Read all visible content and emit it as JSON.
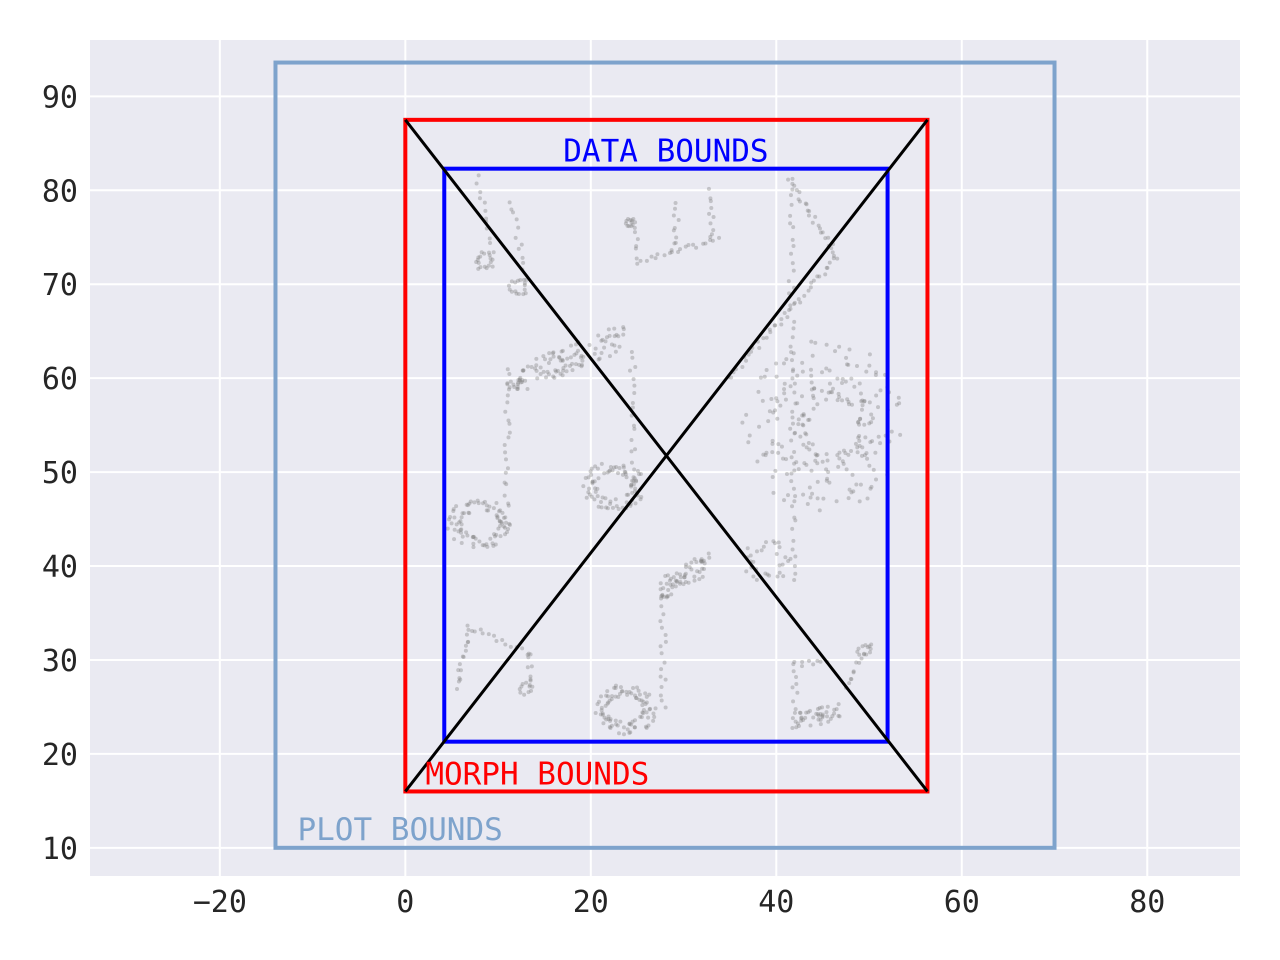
{
  "chart_data": {
    "type": "scatter",
    "xlim": [
      -34,
      90
    ],
    "ylim": [
      7,
      96
    ],
    "xticks": [
      -20,
      0,
      20,
      40,
      60,
      80
    ],
    "yticks": [
      10,
      20,
      30,
      40,
      50,
      60,
      70,
      80,
      90
    ],
    "x_tick_labels": [
      "−20",
      "0",
      "20",
      "40",
      "60",
      "80"
    ],
    "y_tick_labels": [
      "10",
      "20",
      "30",
      "40",
      "50",
      "60",
      "70",
      "80",
      "90"
    ],
    "grid": true,
    "style": "seaborn-darkgrid",
    "colors": {
      "background": "#eaeaf2",
      "grid": "#ffffff",
      "plot_bounds": "#7ea3cc",
      "morph_bounds": "#ff0000",
      "data_bounds": "#0000ff",
      "diagonals": "#000000",
      "points": "#808080"
    },
    "boxes": [
      {
        "label": "PLOT BOUNDS",
        "xmin": -14.0,
        "xmax": 70.0,
        "ymin": 10.0,
        "ymax": 93.6
      },
      {
        "label": "MORPH BOUNDS",
        "xmin": 0.0,
        "xmax": 56.3,
        "ymin": 16.0,
        "ymax": 87.5
      },
      {
        "label": "DATA BOUNDS",
        "xmin": 4.2,
        "xmax": 52.0,
        "ymin": 21.3,
        "ymax": 82.3
      }
    ],
    "diagonals": [
      {
        "from": [
          0.0,
          87.5
        ],
        "to": [
          56.3,
          16.0
        ]
      },
      {
        "from": [
          0.0,
          16.0
        ],
        "to": [
          56.3,
          87.5
        ]
      }
    ],
    "point_groups": [
      {
        "name": "note-head-small",
        "shape": "ellipse",
        "cx": 8.5,
        "cy": 72.5,
        "rx": 1.1,
        "ry": 1.0,
        "n": 18
      },
      {
        "name": "note-stem-small",
        "shape": "line",
        "from": [
          9.5,
          73.5
        ],
        "to": [
          7.8,
          81.5
        ],
        "n": 12
      },
      {
        "name": "note-head-small-2",
        "shape": "ellipse",
        "cx": 12.2,
        "cy": 69.7,
        "rx": 1.0,
        "ry": 1.0,
        "n": 16
      },
      {
        "name": "note-stem-small-2",
        "shape": "line",
        "from": [
          13.0,
          70.5
        ],
        "to": [
          11.5,
          79.0
        ],
        "n": 12
      },
      {
        "name": "triplet-head",
        "shape": "ellipse",
        "cx": 24.2,
        "cy": 76.5,
        "rx": 0.6,
        "ry": 0.6,
        "n": 10
      },
      {
        "name": "triplet-stem-1",
        "shape": "line",
        "from": [
          24.6,
          77.0
        ],
        "to": [
          25.2,
          73.0
        ],
        "n": 8
      },
      {
        "name": "triplet-beam",
        "shape": "line",
        "from": [
          25.2,
          72.3
        ],
        "to": [
          33.6,
          74.8
        ],
        "n": 20
      },
      {
        "name": "triplet-stem-2",
        "shape": "line",
        "from": [
          29.0,
          73.5
        ],
        "to": [
          29.3,
          78.5
        ],
        "n": 10
      },
      {
        "name": "triplet-stem-3",
        "shape": "line",
        "from": [
          33.0,
          74.8
        ],
        "to": [
          33.0,
          80.0
        ],
        "n": 10
      },
      {
        "name": "eighth-beam",
        "shape": "band",
        "from": [
          11.0,
          59.5
        ],
        "to": [
          24.0,
          64.5
        ],
        "width": 3.0,
        "n": 110
      },
      {
        "name": "eighth-stem-left",
        "shape": "line",
        "from": [
          11.0,
          44.0
        ],
        "to": [
          11.0,
          58.0
        ],
        "n": 20
      },
      {
        "name": "eighth-stem-right",
        "shape": "line",
        "from": [
          24.5,
          48.0
        ],
        "to": [
          24.5,
          63.0
        ],
        "n": 20
      },
      {
        "name": "eighth-head-left",
        "shape": "ellipse",
        "cx": 8.0,
        "cy": 44.5,
        "rx": 3.5,
        "ry": 2.5,
        "n": 80
      },
      {
        "name": "eighth-head-right",
        "shape": "ellipse",
        "cx": 22.5,
        "cy": 48.5,
        "rx": 3.3,
        "ry": 2.5,
        "n": 80
      },
      {
        "name": "clef-outer",
        "shape": "ellipse",
        "cx": 45.0,
        "cy": 55.0,
        "rx": 8.5,
        "ry": 9.0,
        "n": 140
      },
      {
        "name": "clef-inner",
        "shape": "ellipse",
        "cx": 46.0,
        "cy": 55.0,
        "rx": 4.5,
        "ry": 5.0,
        "n": 90
      },
      {
        "name": "clef-stem",
        "shape": "line",
        "from": [
          42.0,
          38.5
        ],
        "to": [
          41.5,
          81.0
        ],
        "n": 50
      },
      {
        "name": "clef-top",
        "shape": "line",
        "from": [
          41.5,
          81.0
        ],
        "to": [
          46.5,
          73.0
        ],
        "n": 25
      },
      {
        "name": "clef-loop",
        "shape": "line",
        "from": [
          46.5,
          73.0
        ],
        "to": [
          35.0,
          60.0
        ],
        "n": 40
      },
      {
        "name": "clef-tail",
        "shape": "ellipse",
        "cx": 39.0,
        "cy": 40.5,
        "rx": 2.5,
        "ry": 2.2,
        "n": 30
      },
      {
        "name": "sixteenth-beam",
        "shape": "band",
        "from": [
          27.5,
          37.5
        ],
        "to": [
          33.0,
          40.5
        ],
        "width": 2.5,
        "n": 60
      },
      {
        "name": "sixteenth-stem",
        "shape": "line",
        "from": [
          27.8,
          25.0
        ],
        "to": [
          27.8,
          37.0
        ],
        "n": 18
      },
      {
        "name": "sixteenth-head",
        "shape": "ellipse",
        "cx": 23.8,
        "cy": 24.8,
        "rx": 3.2,
        "ry": 2.6,
        "n": 90
      },
      {
        "name": "small-notes-left",
        "shape": "line",
        "from": [
          5.5,
          27.0
        ],
        "to": [
          7.0,
          33.5
        ],
        "n": 16
      },
      {
        "name": "small-notes-left-2",
        "shape": "line",
        "from": [
          7.0,
          33.5
        ],
        "to": [
          13.5,
          30.5
        ],
        "n": 14
      },
      {
        "name": "small-notes-left-3",
        "shape": "line",
        "from": [
          13.5,
          30.5
        ],
        "to": [
          13.5,
          27.0
        ],
        "n": 8
      },
      {
        "name": "small-notes-left-4",
        "shape": "ellipse",
        "cx": 13.0,
        "cy": 27.0,
        "rx": 0.8,
        "ry": 0.7,
        "n": 10
      },
      {
        "name": "right-notes-stem",
        "shape": "line",
        "from": [
          42.0,
          22.5
        ],
        "to": [
          42.0,
          29.5
        ],
        "n": 12
      },
      {
        "name": "right-notes-beam",
        "shape": "band",
        "from": [
          42.0,
          23.5
        ],
        "to": [
          47.0,
          24.5
        ],
        "width": 1.8,
        "n": 40
      },
      {
        "name": "right-notes-hook",
        "shape": "line",
        "from": [
          47.5,
          27.0
        ],
        "to": [
          50.0,
          31.5
        ],
        "n": 12
      },
      {
        "name": "right-notes-hook-2",
        "shape": "line",
        "from": [
          42.0,
          29.5
        ],
        "to": [
          45.5,
          30.0
        ],
        "n": 8
      },
      {
        "name": "right-notes-hook-3",
        "shape": "ellipse",
        "cx": 49.5,
        "cy": 31.0,
        "rx": 0.8,
        "ry": 0.7,
        "n": 10
      }
    ]
  }
}
